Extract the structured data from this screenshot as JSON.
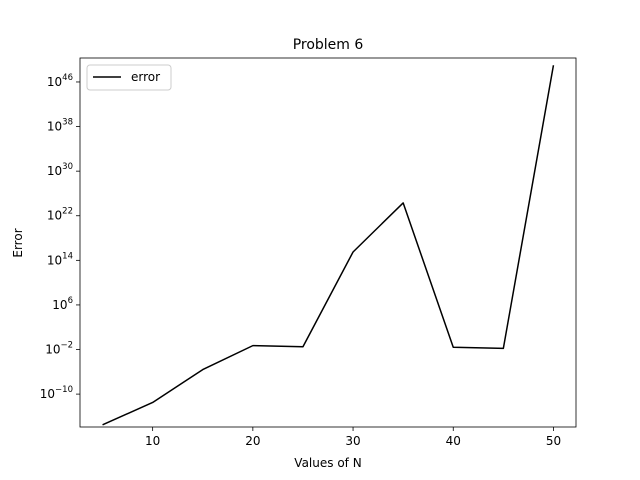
{
  "chart_data": {
    "type": "line",
    "title": "Problem 6",
    "xlabel": "Values of N",
    "ylabel": "Error",
    "yscale": "log",
    "xlim": [
      2.75,
      52.25
    ],
    "ylim_log10": [
      -15.9,
      50.3
    ],
    "x_ticks": [
      10,
      20,
      30,
      40,
      50
    ],
    "y_ticks_exponents": [
      -10,
      -2,
      6,
      14,
      22,
      30,
      38,
      46
    ],
    "y_tick_base": "10",
    "grid": false,
    "legend": {
      "position": "top-left",
      "entries": [
        "error"
      ]
    },
    "series": [
      {
        "name": "error",
        "color": "#000000",
        "x": [
          5,
          10,
          15,
          20,
          25,
          30,
          35,
          40,
          45,
          50
        ],
        "y_log10": [
          -15.5,
          -11.5,
          -5.6,
          -1.3,
          -1.5,
          15.5,
          24.3,
          -1.6,
          -1.8,
          49.0
        ]
      }
    ]
  }
}
